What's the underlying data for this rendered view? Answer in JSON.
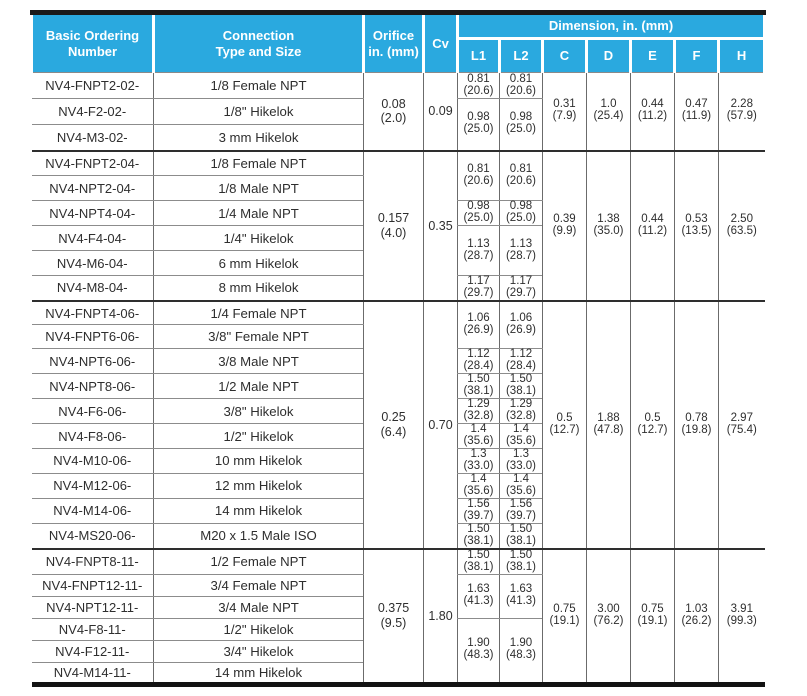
{
  "colors": {
    "header_blue": "#2aa9df",
    "top_bar": "#1a1a1a",
    "grid_line": "#6b6b6b",
    "group_line": "#2e2e2e"
  },
  "header": {
    "ordering": "Basic Ordering\nNumber",
    "connection": "Connection\nType and Size",
    "orifice": "Orifice\nin. (mm)",
    "cv": "Cv",
    "dimension_title": "Dimension, in. (mm)",
    "dim_cols": [
      "L1",
      "L2",
      "C",
      "D",
      "E",
      "F",
      "H"
    ]
  },
  "groups": [
    {
      "orifice": "0.08\n(2.0)",
      "cv": "0.09",
      "rows": [
        {
          "number": "NV4-FNPT2-02-",
          "conn": "1/8 Female NPT"
        },
        {
          "number": "NV4-F2-02-",
          "conn": "1/8\" Hikelok"
        },
        {
          "number": "NV4-M3-02-",
          "conn": "3 mm Hikelok"
        }
      ],
      "l_blocks": [
        {
          "span": 1,
          "l1": "0.81\n(20.6)",
          "l2": "0.81\n(20.6)"
        },
        {
          "span": 2,
          "l1": "0.98\n(25.0)",
          "l2": "0.98\n(25.0)"
        }
      ],
      "c": "0.31\n(7.9)",
      "d": "1.0\n(25.4)",
      "e": "0.44\n(11.2)",
      "f": "0.47\n(11.9)",
      "h": "2.28\n(57.9)"
    },
    {
      "orifice": "0.157\n(4.0)",
      "cv": "0.35",
      "rows": [
        {
          "number": "NV4-FNPT2-04-",
          "conn": "1/8 Female NPT"
        },
        {
          "number": "NV4-NPT2-04-",
          "conn": "1/8 Male NPT"
        },
        {
          "number": "NV4-NPT4-04-",
          "conn": "1/4 Male NPT"
        },
        {
          "number": "NV4-F4-04-",
          "conn": "1/4\" Hikelok"
        },
        {
          "number": "NV4-M6-04-",
          "conn": "6 mm Hikelok"
        },
        {
          "number": "NV4-M8-04-",
          "conn": "8 mm Hikelok"
        }
      ],
      "l_blocks": [
        {
          "span": 2,
          "l1": "0.81\n(20.6)",
          "l2": "0.81\n(20.6)"
        },
        {
          "span": 1,
          "l1": "0.98\n(25.0)",
          "l2": "0.98\n(25.0)"
        },
        {
          "span": 2,
          "l1": "1.13\n(28.7)",
          "l2": "1.13\n(28.7)"
        },
        {
          "span": 1,
          "l1": "1.17\n(29.7)",
          "l2": "1.17\n(29.7)"
        }
      ],
      "c": "0.39\n(9.9)",
      "d": "1.38\n(35.0)",
      "e": "0.44\n(11.2)",
      "f": "0.53\n(13.5)",
      "h": "2.50\n(63.5)"
    },
    {
      "orifice": "0.25\n(6.4)",
      "cv": "0.70",
      "rows": [
        {
          "number": "NV4-FNPT4-06-",
          "conn": "1/4 Female NPT"
        },
        {
          "number": "NV4-FNPT6-06-",
          "conn": "3/8\" Female NPT"
        },
        {
          "number": "NV4-NPT6-06-",
          "conn": "3/8 Male NPT"
        },
        {
          "number": "NV4-NPT8-06-",
          "conn": "1/2 Male NPT"
        },
        {
          "number": "NV4-F6-06-",
          "conn": "3/8\" Hikelok"
        },
        {
          "number": "NV4-F8-06-",
          "conn": "1/2\" Hikelok"
        },
        {
          "number": "NV4-M10-06-",
          "conn": "10 mm Hikelok"
        },
        {
          "number": "NV4-M12-06-",
          "conn": "12 mm Hikelok"
        },
        {
          "number": "NV4-M14-06-",
          "conn": "14 mm Hikelok"
        },
        {
          "number": "NV4-MS20-06-",
          "conn": "M20 x 1.5 Male ISO"
        }
      ],
      "l_blocks": [
        {
          "span": 2,
          "l1": "1.06\n(26.9)",
          "l2": "1.06\n(26.9)"
        },
        {
          "span": 1,
          "l1": "1.12\n(28.4)",
          "l2": "1.12\n(28.4)"
        },
        {
          "span": 1,
          "l1": "1.50\n(38.1)",
          "l2": "1.50\n(38.1)"
        },
        {
          "span": 1,
          "l1": "1.29\n(32.8)",
          "l2": "1.29\n(32.8)"
        },
        {
          "span": 1,
          "l1": "1.4\n(35.6)",
          "l2": "1.4\n(35.6)"
        },
        {
          "span": 1,
          "l1": "1.3\n(33.0)",
          "l2": "1.3\n(33.0)"
        },
        {
          "span": 1,
          "l1": "1.4\n(35.6)",
          "l2": "1.4\n(35.6)"
        },
        {
          "span": 1,
          "l1": "1.56\n(39.7)",
          "l2": "1.56\n(39.7)"
        },
        {
          "span": 1,
          "l1": "1.50\n(38.1)",
          "l2": "1.50\n(38.1)"
        }
      ],
      "c": "0.5\n(12.7)",
      "d": "1.88\n(47.8)",
      "e": "0.5\n(12.7)",
      "f": "0.78\n(19.8)",
      "h": "2.97\n(75.4)"
    },
    {
      "orifice": "0.375\n(9.5)",
      "cv": "1.80",
      "rows": [
        {
          "number": "NV4-FNPT8-11-",
          "conn": "1/2 Female NPT"
        },
        {
          "number": "NV4-FNPT12-11-",
          "conn": "3/4 Female NPT"
        },
        {
          "number": "NV4-NPT12-11-",
          "conn": "3/4 Male NPT"
        },
        {
          "number": "NV4-F8-11-",
          "conn": "1/2\" Hikelok"
        },
        {
          "number": "NV4-F12-11-",
          "conn": "3/4\" Hikelok"
        },
        {
          "number": "NV4-M14-11-",
          "conn": "14 mm Hikelok"
        }
      ],
      "l_blocks": [
        {
          "span": 1,
          "l1": "1.50\n(38.1)",
          "l2": "1.50\n(38.1)"
        },
        {
          "span": 2,
          "l1": "1.63\n(41.3)",
          "l2": "1.63\n(41.3)"
        },
        {
          "span": 3,
          "l1": "1.90\n(48.3)",
          "l2": "1.90\n(48.3)"
        }
      ],
      "c": "0.75\n(19.1)",
      "d": "3.00\n(76.2)",
      "e": "0.75\n(19.1)",
      "f": "1.03\n(26.2)",
      "h": "3.91\n(99.3)"
    }
  ]
}
